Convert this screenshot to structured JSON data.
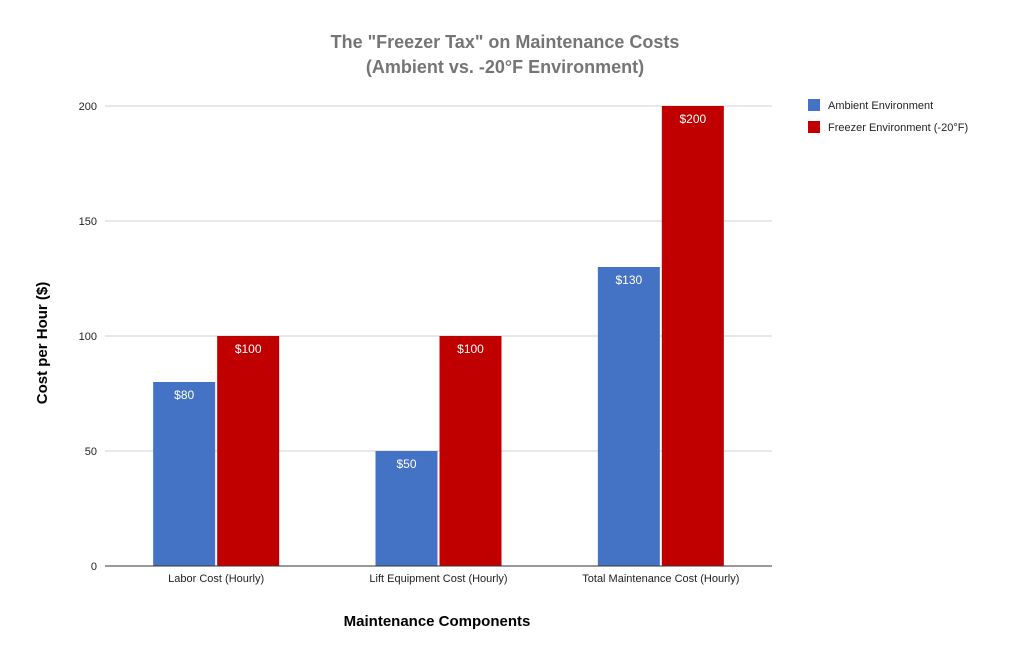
{
  "chart_data": {
    "type": "bar",
    "title_lines": [
      "The \"Freezer Tax\" on Maintenance Costs",
      "(Ambient vs. -20°F Environment)"
    ],
    "xlabel": "Maintenance Components",
    "ylabel": "Cost per Hour ($)",
    "categories": [
      "Labor Cost (Hourly)",
      "Lift Equipment Cost (Hourly)",
      "Total Maintenance Cost (Hourly)"
    ],
    "series": [
      {
        "name": "Ambient Environment",
        "values": [
          80,
          50,
          130
        ],
        "labels": [
          "$80",
          "$50",
          "$130"
        ],
        "color": "#4472C4"
      },
      {
        "name": "Freezer Environment (-20°F)",
        "values": [
          100,
          100,
          200
        ],
        "labels": [
          "$100",
          "$100",
          "$200"
        ],
        "color": "#C00000"
      }
    ],
    "ylim": [
      0,
      200
    ],
    "yticks": [
      0,
      50,
      100,
      150,
      200
    ],
    "grid": true,
    "legend_position": "right"
  }
}
